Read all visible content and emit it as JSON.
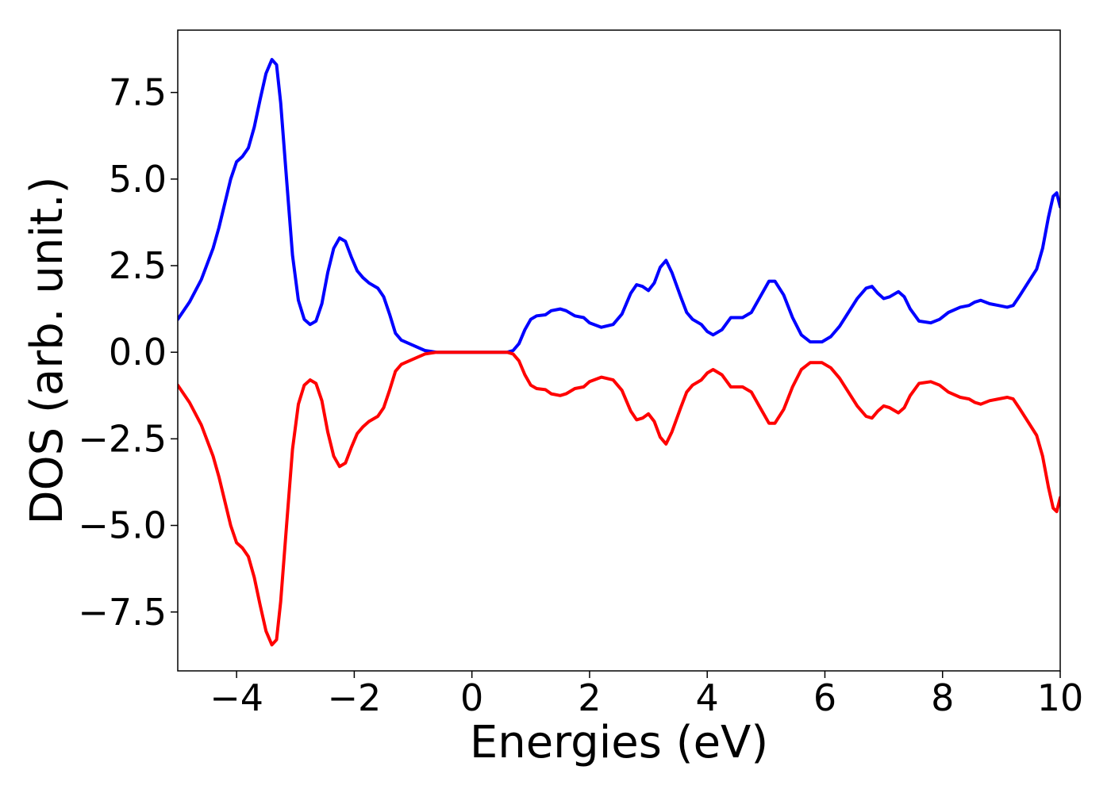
{
  "chart_data": {
    "type": "line",
    "xlabel": "Energies (eV)",
    "ylabel": "DOS (arb. unit.)",
    "xlim": [
      -5,
      10
    ],
    "ylim": [
      -9.2,
      9.3
    ],
    "grid": false,
    "x_ticks": [
      {
        "value": -4,
        "label": "−4"
      },
      {
        "value": -2,
        "label": "−2"
      },
      {
        "value": 0,
        "label": "0"
      },
      {
        "value": 2,
        "label": "2"
      },
      {
        "value": 4,
        "label": "4"
      },
      {
        "value": 6,
        "label": "6"
      },
      {
        "value": 8,
        "label": "8"
      },
      {
        "value": 10,
        "label": "10"
      }
    ],
    "y_ticks": [
      {
        "value": 7.5,
        "label": "7.5"
      },
      {
        "value": 5.0,
        "label": "5.0"
      },
      {
        "value": 2.5,
        "label": "2.5"
      },
      {
        "value": 0.0,
        "label": "0.0"
      },
      {
        "value": -2.5,
        "label": "−2.5"
      },
      {
        "value": -5.0,
        "label": "−5.0"
      },
      {
        "value": -7.5,
        "label": "−7.5"
      }
    ],
    "series": [
      {
        "color": "#0000ff",
        "points": [
          [
            -5.0,
            0.95
          ],
          [
            -4.8,
            1.45
          ],
          [
            -4.6,
            2.1
          ],
          [
            -4.4,
            3.0
          ],
          [
            -4.3,
            3.6
          ],
          [
            -4.2,
            4.3
          ],
          [
            -4.1,
            5.0
          ],
          [
            -4.0,
            5.5
          ],
          [
            -3.9,
            5.65
          ],
          [
            -3.8,
            5.9
          ],
          [
            -3.7,
            6.5
          ],
          [
            -3.6,
            7.3
          ],
          [
            -3.5,
            8.05
          ],
          [
            -3.4,
            8.45
          ],
          [
            -3.32,
            8.3
          ],
          [
            -3.25,
            7.2
          ],
          [
            -3.15,
            5.0
          ],
          [
            -3.05,
            2.8
          ],
          [
            -2.95,
            1.5
          ],
          [
            -2.85,
            0.95
          ],
          [
            -2.75,
            0.8
          ],
          [
            -2.65,
            0.9
          ],
          [
            -2.55,
            1.4
          ],
          [
            -2.45,
            2.3
          ],
          [
            -2.35,
            3.0
          ],
          [
            -2.25,
            3.3
          ],
          [
            -2.15,
            3.2
          ],
          [
            -2.05,
            2.75
          ],
          [
            -1.95,
            2.35
          ],
          [
            -1.85,
            2.15
          ],
          [
            -1.75,
            2.0
          ],
          [
            -1.6,
            1.85
          ],
          [
            -1.5,
            1.6
          ],
          [
            -1.4,
            1.1
          ],
          [
            -1.3,
            0.55
          ],
          [
            -1.2,
            0.35
          ],
          [
            -1.0,
            0.2
          ],
          [
            -0.8,
            0.05
          ],
          [
            -0.6,
            0.0
          ],
          [
            0.0,
            0.0
          ],
          [
            0.6,
            0.0
          ],
          [
            0.7,
            0.05
          ],
          [
            0.8,
            0.25
          ],
          [
            0.9,
            0.65
          ],
          [
            1.0,
            0.95
          ],
          [
            1.1,
            1.05
          ],
          [
            1.25,
            1.08
          ],
          [
            1.35,
            1.2
          ],
          [
            1.5,
            1.25
          ],
          [
            1.6,
            1.2
          ],
          [
            1.75,
            1.05
          ],
          [
            1.9,
            1.0
          ],
          [
            2.0,
            0.85
          ],
          [
            2.2,
            0.72
          ],
          [
            2.4,
            0.8
          ],
          [
            2.55,
            1.1
          ],
          [
            2.7,
            1.7
          ],
          [
            2.8,
            1.95
          ],
          [
            2.9,
            1.9
          ],
          [
            3.0,
            1.78
          ],
          [
            3.1,
            2.0
          ],
          [
            3.2,
            2.45
          ],
          [
            3.3,
            2.65
          ],
          [
            3.4,
            2.3
          ],
          [
            3.55,
            1.6
          ],
          [
            3.65,
            1.15
          ],
          [
            3.75,
            0.95
          ],
          [
            3.9,
            0.8
          ],
          [
            4.0,
            0.6
          ],
          [
            4.1,
            0.5
          ],
          [
            4.25,
            0.65
          ],
          [
            4.4,
            1.0
          ],
          [
            4.6,
            1.0
          ],
          [
            4.75,
            1.15
          ],
          [
            4.9,
            1.6
          ],
          [
            5.05,
            2.05
          ],
          [
            5.15,
            2.05
          ],
          [
            5.3,
            1.65
          ],
          [
            5.45,
            1.0
          ],
          [
            5.6,
            0.5
          ],
          [
            5.75,
            0.3
          ],
          [
            5.95,
            0.3
          ],
          [
            6.1,
            0.45
          ],
          [
            6.25,
            0.75
          ],
          [
            6.4,
            1.15
          ],
          [
            6.55,
            1.55
          ],
          [
            6.7,
            1.85
          ],
          [
            6.8,
            1.9
          ],
          [
            6.9,
            1.7
          ],
          [
            7.0,
            1.55
          ],
          [
            7.1,
            1.6
          ],
          [
            7.25,
            1.75
          ],
          [
            7.35,
            1.6
          ],
          [
            7.45,
            1.25
          ],
          [
            7.6,
            0.9
          ],
          [
            7.8,
            0.85
          ],
          [
            7.95,
            0.95
          ],
          [
            8.1,
            1.15
          ],
          [
            8.3,
            1.3
          ],
          [
            8.45,
            1.35
          ],
          [
            8.55,
            1.45
          ],
          [
            8.65,
            1.5
          ],
          [
            8.8,
            1.4
          ],
          [
            8.95,
            1.35
          ],
          [
            9.1,
            1.3
          ],
          [
            9.2,
            1.35
          ],
          [
            9.3,
            1.6
          ],
          [
            9.45,
            2.0
          ],
          [
            9.6,
            2.4
          ],
          [
            9.7,
            3.0
          ],
          [
            9.8,
            3.9
          ],
          [
            9.88,
            4.5
          ],
          [
            9.94,
            4.6
          ],
          [
            10.0,
            4.2
          ]
        ]
      },
      {
        "color": "#ff0000",
        "points": [
          [
            -5.0,
            -0.95
          ],
          [
            -4.8,
            -1.45
          ],
          [
            -4.6,
            -2.1
          ],
          [
            -4.4,
            -3.0
          ],
          [
            -4.3,
            -3.6
          ],
          [
            -4.2,
            -4.3
          ],
          [
            -4.1,
            -5.0
          ],
          [
            -4.0,
            -5.5
          ],
          [
            -3.9,
            -5.65
          ],
          [
            -3.8,
            -5.9
          ],
          [
            -3.7,
            -6.5
          ],
          [
            -3.6,
            -7.3
          ],
          [
            -3.5,
            -8.05
          ],
          [
            -3.4,
            -8.45
          ],
          [
            -3.32,
            -8.3
          ],
          [
            -3.25,
            -7.2
          ],
          [
            -3.15,
            -5.0
          ],
          [
            -3.05,
            -2.8
          ],
          [
            -2.95,
            -1.5
          ],
          [
            -2.85,
            -0.95
          ],
          [
            -2.75,
            -0.8
          ],
          [
            -2.65,
            -0.9
          ],
          [
            -2.55,
            -1.4
          ],
          [
            -2.45,
            -2.3
          ],
          [
            -2.35,
            -3.0
          ],
          [
            -2.25,
            -3.3
          ],
          [
            -2.15,
            -3.2
          ],
          [
            -2.05,
            -2.75
          ],
          [
            -1.95,
            -2.35
          ],
          [
            -1.85,
            -2.15
          ],
          [
            -1.75,
            -2.0
          ],
          [
            -1.6,
            -1.85
          ],
          [
            -1.5,
            -1.6
          ],
          [
            -1.4,
            -1.1
          ],
          [
            -1.3,
            -0.55
          ],
          [
            -1.2,
            -0.35
          ],
          [
            -1.0,
            -0.2
          ],
          [
            -0.8,
            -0.05
          ],
          [
            -0.6,
            0.0
          ],
          [
            0.0,
            0.0
          ],
          [
            0.6,
            0.0
          ],
          [
            0.7,
            -0.05
          ],
          [
            0.8,
            -0.25
          ],
          [
            0.9,
            -0.65
          ],
          [
            1.0,
            -0.95
          ],
          [
            1.1,
            -1.05
          ],
          [
            1.25,
            -1.08
          ],
          [
            1.35,
            -1.2
          ],
          [
            1.5,
            -1.25
          ],
          [
            1.6,
            -1.2
          ],
          [
            1.75,
            -1.05
          ],
          [
            1.9,
            -1.0
          ],
          [
            2.0,
            -0.85
          ],
          [
            2.2,
            -0.72
          ],
          [
            2.4,
            -0.8
          ],
          [
            2.55,
            -1.1
          ],
          [
            2.7,
            -1.7
          ],
          [
            2.8,
            -1.95
          ],
          [
            2.9,
            -1.9
          ],
          [
            3.0,
            -1.78
          ],
          [
            3.1,
            -2.0
          ],
          [
            3.2,
            -2.45
          ],
          [
            3.3,
            -2.65
          ],
          [
            3.4,
            -2.3
          ],
          [
            3.55,
            -1.6
          ],
          [
            3.65,
            -1.15
          ],
          [
            3.75,
            -0.95
          ],
          [
            3.9,
            -0.8
          ],
          [
            4.0,
            -0.6
          ],
          [
            4.1,
            -0.5
          ],
          [
            4.25,
            -0.65
          ],
          [
            4.4,
            -1.0
          ],
          [
            4.6,
            -1.0
          ],
          [
            4.75,
            -1.15
          ],
          [
            4.9,
            -1.6
          ],
          [
            5.05,
            -2.05
          ],
          [
            5.15,
            -2.05
          ],
          [
            5.3,
            -1.65
          ],
          [
            5.45,
            -1.0
          ],
          [
            5.6,
            -0.5
          ],
          [
            5.75,
            -0.3
          ],
          [
            5.95,
            -0.3
          ],
          [
            6.1,
            -0.45
          ],
          [
            6.25,
            -0.75
          ],
          [
            6.4,
            -1.15
          ],
          [
            6.55,
            -1.55
          ],
          [
            6.7,
            -1.85
          ],
          [
            6.8,
            -1.9
          ],
          [
            6.9,
            -1.7
          ],
          [
            7.0,
            -1.55
          ],
          [
            7.1,
            -1.6
          ],
          [
            7.25,
            -1.75
          ],
          [
            7.35,
            -1.6
          ],
          [
            7.45,
            -1.25
          ],
          [
            7.6,
            -0.9
          ],
          [
            7.8,
            -0.85
          ],
          [
            7.95,
            -0.95
          ],
          [
            8.1,
            -1.15
          ],
          [
            8.3,
            -1.3
          ],
          [
            8.45,
            -1.35
          ],
          [
            8.55,
            -1.45
          ],
          [
            8.65,
            -1.5
          ],
          [
            8.8,
            -1.4
          ],
          [
            8.95,
            -1.35
          ],
          [
            9.1,
            -1.3
          ],
          [
            9.2,
            -1.35
          ],
          [
            9.3,
            -1.6
          ],
          [
            9.45,
            -2.0
          ],
          [
            9.6,
            -2.4
          ],
          [
            9.7,
            -3.0
          ],
          [
            9.8,
            -3.9
          ],
          [
            9.88,
            -4.5
          ],
          [
            9.94,
            -4.6
          ],
          [
            10.0,
            -4.2
          ]
        ]
      }
    ]
  }
}
